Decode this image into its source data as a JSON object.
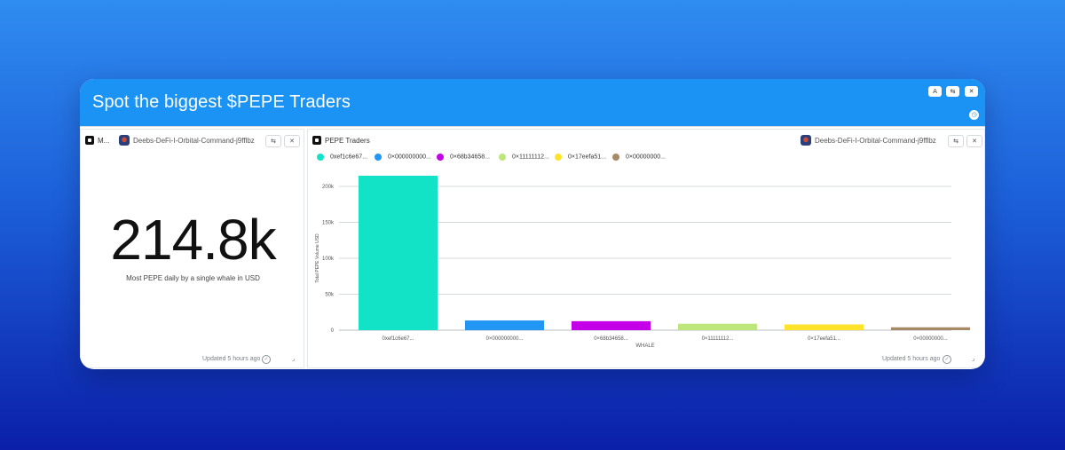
{
  "dashboard": {
    "title": "Spot the biggest $PEPE Traders",
    "header_buttons": [
      "A",
      "⇆",
      "✕"
    ],
    "clock_icon": "clock-icon"
  },
  "left_panel": {
    "title": "M...",
    "creator": "Deebs-DeFi-I-Orbital-Command-j9fflbz",
    "big_value": "214.8k",
    "caption": "Most PEPE daily by a single whale in USD",
    "updated": "Updated 5 hours ago"
  },
  "right_panel": {
    "title": "PEPE Traders",
    "creator": "Deebs-DeFi-I-Orbital-Command-j9fflbz",
    "updated": "Updated 5 hours ago"
  },
  "colors": {
    "header_bg": "#1b93f4",
    "series": [
      "#12e3c7",
      "#2196f3",
      "#c400e8",
      "#bde77a",
      "#fde42a",
      "#a68a66"
    ]
  },
  "chart_data": {
    "type": "bar",
    "title": "PEPE Traders",
    "xlabel": "WHALE",
    "ylabel": "Total PEPE Volume USD",
    "categories": [
      "0xef1c6e67...",
      "0×000000000...",
      "0×68b34658...",
      "0×11111112...",
      "0×17eefa51...",
      "0×00000000..."
    ],
    "legend": [
      "0xef1c6e67...",
      "0×000000000...",
      "0×68b34658...",
      "0×11111112...",
      "0×17eefa51...",
      "0×00000000..."
    ],
    "values": [
      214800,
      13500,
      12500,
      9000,
      8000,
      4000
    ],
    "ylim": [
      0,
      200000
    ],
    "yticks": [
      0,
      50000,
      100000,
      150000,
      200000
    ],
    "ytick_labels": [
      "0",
      "50k",
      "100k",
      "150k",
      "200k"
    ],
    "grid": true
  }
}
